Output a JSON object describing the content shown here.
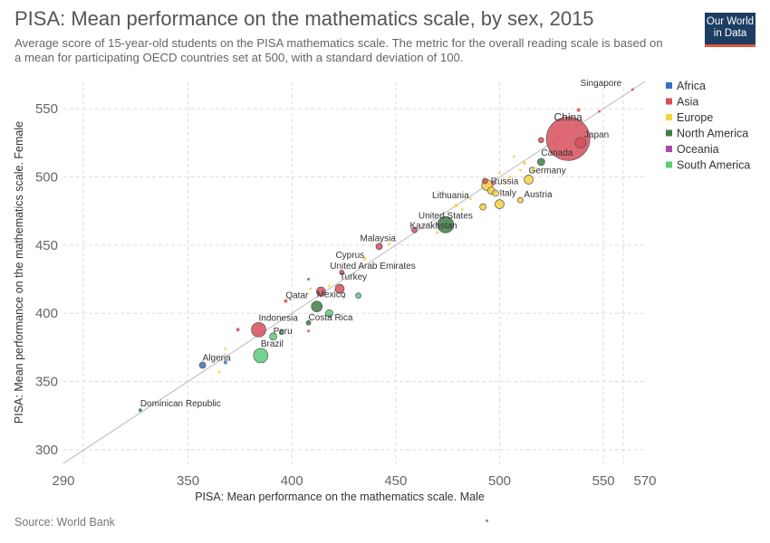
{
  "title": "PISA: Mean performance on the mathematics scale, by sex, 2015",
  "subtitle": "Average score of 15-year-old students on the PISA mathematics scale. The metric for the overall reading scale is based on a mean for participating OECD countries set at 500, with a standard deviation of 100.",
  "logo": {
    "line1": "Our World",
    "line2": "in Data",
    "bg": "#1d3d63",
    "accent": "#e2543d"
  },
  "source": "Source: World Bank",
  "chart_data": {
    "type": "scatter",
    "xlabel": "PISA: Mean performance on the mathematics scale. Male",
    "ylabel": "PISA: Mean performance on the mathematics scale. Female",
    "xlim": [
      290,
      570
    ],
    "ylim": [
      290,
      570
    ],
    "xticks": [
      290,
      350,
      400,
      450,
      500,
      550,
      570
    ],
    "yticks": [
      300,
      350,
      400,
      450,
      500,
      550
    ],
    "grid": true,
    "diagonal_line": true,
    "legend_position": "top-right",
    "legend": [
      {
        "name": "Africa",
        "color": "#3c6ec2"
      },
      {
        "name": "Asia",
        "color": "#d64f5b"
      },
      {
        "name": "Europe",
        "color": "#f5d23f"
      },
      {
        "name": "North America",
        "color": "#3e7e45"
      },
      {
        "name": "Oceania",
        "color": "#a848b3"
      },
      {
        "name": "South America",
        "color": "#5ccb7c"
      }
    ],
    "points": [
      {
        "label": "Singapore",
        "x": 564,
        "y": 564,
        "region": "Asia",
        "size": 1.5
      },
      {
        "label": "China",
        "x": 533,
        "y": 528,
        "region": "Asia",
        "size": 24
      },
      {
        "label": "Japan",
        "x": 539,
        "y": 525,
        "region": "Asia",
        "size": 6
      },
      {
        "label": "Canada",
        "x": 520,
        "y": 511,
        "region": "North America",
        "size": 4
      },
      {
        "label": "Germany",
        "x": 514,
        "y": 498,
        "region": "Europe",
        "size": 5
      },
      {
        "label": "Russia",
        "x": 494,
        "y": 494,
        "region": "Europe",
        "size": 6
      },
      {
        "label": "Austria",
        "x": 510,
        "y": 483,
        "region": "Europe",
        "size": 3
      },
      {
        "label": "Italy",
        "x": 500,
        "y": 480,
        "region": "Europe",
        "size": 5
      },
      {
        "label": "Lithuania",
        "x": 479,
        "y": 479,
        "region": "Europe",
        "size": 2
      },
      {
        "label": "United States",
        "x": 474,
        "y": 465,
        "region": "North America",
        "size": 9
      },
      {
        "label": "Kazakhstan",
        "x": 459,
        "y": 461,
        "region": "Asia",
        "size": 3
      },
      {
        "label": "Malaysia",
        "x": 442,
        "y": 449,
        "region": "Asia",
        "size": 3.5
      },
      {
        "label": "Cyprus",
        "x": 435,
        "y": 440,
        "region": "Europe",
        "size": 2
      },
      {
        "label": "United Arab Emirates",
        "x": 424,
        "y": 430,
        "region": "Asia",
        "size": 2.5
      },
      {
        "label": "Turkey",
        "x": 423,
        "y": 418,
        "region": "Asia",
        "size": 5
      },
      {
        "label": "Mexico",
        "x": 412,
        "y": 405,
        "region": "North America",
        "size": 6
      },
      {
        "label": "Qatar",
        "x": 397,
        "y": 409,
        "region": "Asia",
        "size": 2
      },
      {
        "label": "Costa Rica",
        "x": 408,
        "y": 393,
        "region": "North America",
        "size": 2.5
      },
      {
        "label": "Indonesia",
        "x": 384,
        "y": 388,
        "region": "Asia",
        "size": 8
      },
      {
        "label": "Peru",
        "x": 391,
        "y": 383,
        "region": "South America",
        "size": 4
      },
      {
        "label": "Brazil",
        "x": 385,
        "y": 369,
        "region": "South America",
        "size": 8
      },
      {
        "label": "Algeria",
        "x": 357,
        "y": 362,
        "region": "Africa",
        "size": 3.5
      },
      {
        "label": "Dominican Republic",
        "x": 327,
        "y": 329,
        "region": "North America",
        "size": 2
      },
      {
        "label": "",
        "x": 548,
        "y": 548,
        "region": "Asia",
        "size": 1.5
      },
      {
        "label": "",
        "x": 520,
        "y": 527,
        "region": "Asia",
        "size": 3
      },
      {
        "label": "",
        "x": 538,
        "y": 549,
        "region": "Asia",
        "size": 2
      },
      {
        "label": "",
        "x": 516,
        "y": 505,
        "region": "Europe",
        "size": 2
      },
      {
        "label": "",
        "x": 512,
        "y": 510,
        "region": "Europe",
        "size": 2
      },
      {
        "label": "",
        "x": 507,
        "y": 515,
        "region": "Europe",
        "size": 1.5
      },
      {
        "label": "",
        "x": 510,
        "y": 505,
        "region": "Europe",
        "size": 1.5
      },
      {
        "label": "",
        "x": 500,
        "y": 503,
        "region": "Europe",
        "size": 1.5
      },
      {
        "label": "",
        "x": 498,
        "y": 488,
        "region": "Europe",
        "size": 3.5
      },
      {
        "label": "",
        "x": 496,
        "y": 490,
        "region": "Europe",
        "size": 4
      },
      {
        "label": "",
        "x": 497,
        "y": 495,
        "region": "Asia",
        "size": 2
      },
      {
        "label": "",
        "x": 493,
        "y": 497,
        "region": "Asia",
        "size": 3
      },
      {
        "label": "",
        "x": 492,
        "y": 478,
        "region": "Europe",
        "size": 3.5
      },
      {
        "label": "",
        "x": 503,
        "y": 496,
        "region": "Europe",
        "size": 1.5
      },
      {
        "label": "",
        "x": 505,
        "y": 500,
        "region": "Europe",
        "size": 1.5
      },
      {
        "label": "",
        "x": 486,
        "y": 484,
        "region": "Europe",
        "size": 1.5
      },
      {
        "label": "",
        "x": 482,
        "y": 476,
        "region": "Europe",
        "size": 1.5
      },
      {
        "label": "",
        "x": 470,
        "y": 459,
        "region": "Europe",
        "size": 1.5
      },
      {
        "label": "",
        "x": 447,
        "y": 451,
        "region": "Europe",
        "size": 1.5
      },
      {
        "label": "",
        "x": 408,
        "y": 425,
        "region": "North America",
        "size": 1.5
      },
      {
        "label": "",
        "x": 409,
        "y": 418,
        "region": "Europe",
        "size": 1.5
      },
      {
        "label": "",
        "x": 418,
        "y": 420,
        "region": "Europe",
        "size": 1.5
      },
      {
        "label": "",
        "x": 414,
        "y": 416,
        "region": "Asia",
        "size": 5
      },
      {
        "label": "",
        "x": 425,
        "y": 412,
        "region": "South America",
        "size": 1.5
      },
      {
        "label": "",
        "x": 432,
        "y": 413,
        "region": "South America",
        "size": 3
      },
      {
        "label": "",
        "x": 418,
        "y": 400,
        "region": "South America",
        "size": 4
      },
      {
        "label": "",
        "x": 408,
        "y": 387,
        "region": "Asia",
        "size": 1.5
      },
      {
        "label": "",
        "x": 374,
        "y": 388,
        "region": "Asia",
        "size": 2
      },
      {
        "label": "",
        "x": 395,
        "y": 386,
        "region": "South America",
        "size": 2.5
      },
      {
        "label": "",
        "x": 368,
        "y": 374,
        "region": "Europe",
        "size": 1.5
      },
      {
        "label": "",
        "x": 368,
        "y": 364,
        "region": "Africa",
        "size": 2
      },
      {
        "label": "",
        "x": 365,
        "y": 357,
        "region": "Europe",
        "size": 1.5
      }
    ]
  }
}
